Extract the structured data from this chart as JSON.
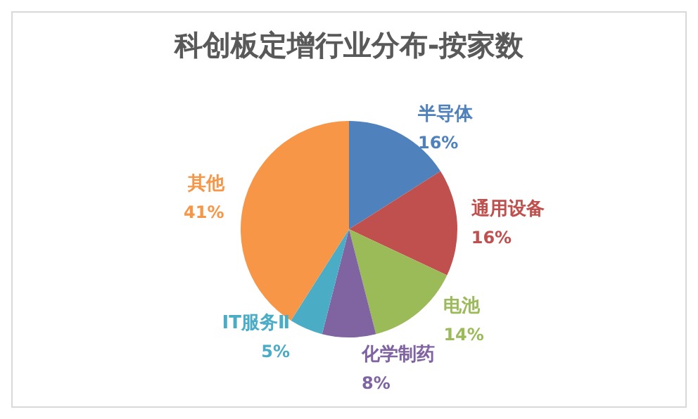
{
  "chart_data": {
    "type": "pie",
    "title": "科创板定增行业分布-按家数",
    "categories": [
      "半导体",
      "通用设备",
      "电池",
      "化学制药",
      "IT服务Ⅱ",
      "其他"
    ],
    "values": [
      16,
      16,
      14,
      8,
      5,
      41
    ],
    "colors": [
      "#4f81bd",
      "#c0504d",
      "#9bbb59",
      "#8064a2",
      "#4bacc6",
      "#f79646"
    ],
    "value_labels": [
      "16%",
      "16%",
      "14%",
      "8%",
      "5%",
      "41%"
    ],
    "legend": false
  }
}
